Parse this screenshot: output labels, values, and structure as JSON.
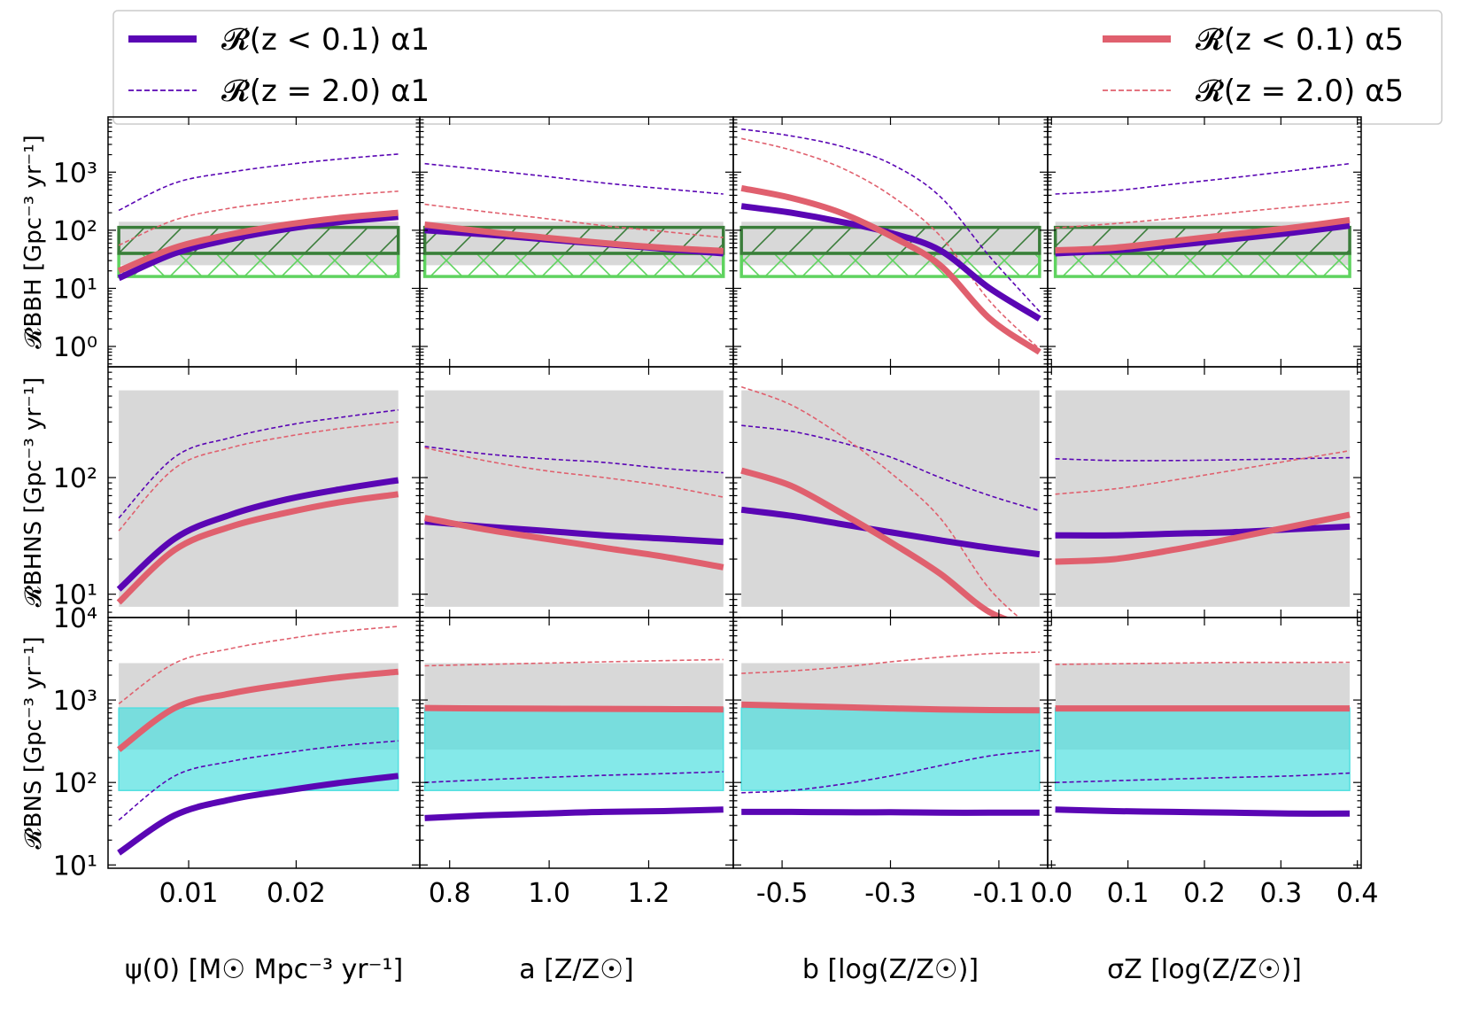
{
  "colors": {
    "alpha1": "#5a06b4",
    "alpha5": "#e0606e",
    "band_gray": "#d8d8d8",
    "bbh_dark_green": "#3a7d3a",
    "bbh_light_green": "#5fd35f",
    "bns_cyan": "#50dfe0"
  },
  "legend": {
    "entries": [
      {
        "label": "𝓡(z < 0.1) α1",
        "style": "solid-thick",
        "color": "#5a06b4"
      },
      {
        "label": "𝓡(z = 2.0) α1",
        "style": "dashed",
        "color": "#5a06b4"
      },
      {
        "label": "𝓡(z < 0.1) α5",
        "style": "solid-thick",
        "color": "#e0606e"
      },
      {
        "label": "𝓡(z = 2.0) α5",
        "style": "dashed",
        "color": "#e0606e"
      }
    ]
  },
  "chart_data": {
    "type": "line",
    "yscale": "log",
    "columns": [
      {
        "key": "psi",
        "xlabel": "ψ(0) [M☉ Mpc⁻³ yr⁻¹]",
        "xlim": [
          0.0025,
          0.0315
        ],
        "ticks": [
          0.01,
          0.02
        ],
        "tick_labels": [
          "0.01",
          "0.02"
        ],
        "xrange": [
          0.0035,
          0.0295
        ]
      },
      {
        "key": "a",
        "xlabel": "a [Z/Z☉]",
        "xlim": [
          0.74,
          1.37
        ],
        "ticks": [
          0.8,
          1.0,
          1.2
        ],
        "tick_labels": [
          "0.8",
          "1.0",
          "1.2"
        ],
        "xrange": [
          0.75,
          1.35
        ]
      },
      {
        "key": "b",
        "xlabel": "b [log(Z/Z☉)]",
        "xlim": [
          -0.59,
          -0.01
        ],
        "ticks": [
          -0.5,
          -0.3,
          -0.1
        ],
        "tick_labels": [
          "-0.5",
          "-0.3",
          "-0.1"
        ],
        "xrange": [
          -0.575,
          -0.025
        ]
      },
      {
        "key": "sigma",
        "xlabel": "σZ [log(Z/Z☉)]",
        "xlim": [
          -0.005,
          0.405
        ],
        "ticks": [
          0.0,
          0.1,
          0.2,
          0.3,
          0.4
        ],
        "tick_labels": [
          "0.0",
          "0.1",
          "0.2",
          "0.3",
          "0.4"
        ],
        "xrange": [
          0.005,
          0.39
        ]
      }
    ],
    "rows": [
      {
        "key": "BBH",
        "ylabel": "𝓡BBH [Gpc⁻³ yr⁻¹]",
        "ylim_log": [
          -0.35,
          3.95
        ],
        "ytick_exps": [
          0,
          1,
          2,
          3
        ],
        "ytick_labels": [
          "10⁰",
          "10¹",
          "10²",
          "10³"
        ],
        "bands": [
          {
            "kind": "gray",
            "range": [
              25,
              140
            ]
          },
          {
            "kind": "hatch-light-green",
            "range": [
              16,
              40
            ]
          },
          {
            "kind": "hatch-dark-green",
            "range": [
              40,
              112
            ]
          }
        ],
        "series": {
          "psi": {
            "a1z0": [
              15,
              40,
              70,
              105,
              140,
              170
            ],
            "a1z2": [
              220,
              650,
              1000,
              1350,
              1700,
              2050
            ],
            "a5z0": [
              20,
              50,
              85,
              125,
              165,
              200
            ],
            "a5z2": [
              55,
              150,
              240,
              320,
              400,
              470
            ]
          },
          "a": {
            "a1z0": [
              100,
              85,
              70,
              58,
              48,
              40
            ],
            "a1z2": [
              1400,
              1100,
              850,
              650,
              520,
              420
            ],
            "a5z0": [
              125,
              95,
              75,
              60,
              50,
              44
            ],
            "a5z2": [
              280,
              210,
              160,
              120,
              95,
              75
            ]
          },
          "b": {
            "a1z0": [
              260,
              200,
              140,
              90,
              45,
              10,
              3
            ],
            "a1z2": [
              5500,
              4200,
              2800,
              1400,
              380,
              35,
              4
            ],
            "a5z0": [
              530,
              360,
              200,
              80,
              25,
              3,
              0.8
            ],
            "a5z2": [
              3800,
              2400,
              1200,
              400,
              80,
              6,
              0.9
            ]
          },
          "sigma": {
            "a1z0": [
              40,
              45,
              55,
              70,
              90,
              120
            ],
            "a1z2": [
              420,
              480,
              620,
              800,
              1050,
              1400
            ],
            "a5z0": [
              45,
              50,
              65,
              85,
              110,
              150
            ],
            "a5z2": [
              110,
              130,
              160,
              200,
              250,
              310
            ]
          }
        }
      },
      {
        "key": "BHNS",
        "ylabel": "𝓡BHNS [Gpc⁻³ yr⁻¹]",
        "ylim_log": [
          0.8,
          2.95
        ],
        "ytick_exps": [
          1,
          2
        ],
        "ytick_labels": [
          "10¹",
          "10²"
        ],
        "bands": [
          {
            "kind": "gray",
            "range": [
              7.8,
              560
            ]
          }
        ],
        "series": {
          "psi": {
            "a1z0": [
              11,
              30,
              48,
              65,
              80,
              95
            ],
            "a1z2": [
              45,
              150,
              220,
              280,
              330,
              380
            ],
            "a5z0": [
              8.5,
              24,
              38,
              50,
              62,
              72
            ],
            "a5z2": [
              35,
              120,
              180,
              225,
              265,
              300
            ]
          },
          "a": {
            "a1z0": [
              42,
              38,
              35,
              32,
              30,
              28
            ],
            "a1z2": [
              185,
              160,
              145,
              135,
              120,
              110
            ],
            "a5z0": [
              45,
              36,
              30,
              25,
              21,
              17
            ],
            "a5z2": [
              180,
              140,
              115,
              100,
              85,
              68
            ]
          },
          "b": {
            "a1z0": [
              53,
              47,
              40,
              34,
              29,
              25,
              22
            ],
            "a1z2": [
              280,
              250,
              200,
              150,
              100,
              70,
              52
            ],
            "a5z0": [
              115,
              85,
              50,
              28,
              15,
              7,
              5
            ],
            "a5z2": [
              600,
              420,
              230,
              110,
              45,
              11,
              4.5
            ]
          },
          "sigma": {
            "a1z0": [
              32,
              32,
              33,
              34,
              36,
              38
            ],
            "a1z2": [
              145,
              140,
              140,
              142,
              145,
              148
            ],
            "a5z0": [
              19,
              20,
              24,
              30,
              38,
              48
            ],
            "a5z2": [
              72,
              80,
              95,
              115,
              140,
              170
            ]
          }
        }
      },
      {
        "key": "BNS",
        "ylabel": "𝓡BNS [Gpc⁻³ yr⁻¹]",
        "ylim_log": [
          0.96,
          4.0
        ],
        "ytick_exps": [
          1,
          2,
          3,
          4
        ],
        "ytick_labels": [
          "10¹",
          "10²",
          "10³",
          "10⁴"
        ],
        "bands": [
          {
            "kind": "gray",
            "range": [
              250,
              2800
            ]
          },
          {
            "kind": "cyan",
            "range": [
              80,
              800
            ]
          }
        ],
        "series": {
          "psi": {
            "a1z0": [
              14,
              40,
              62,
              80,
              100,
              120
            ],
            "a1z2": [
              35,
              120,
              180,
              230,
              280,
              320
            ],
            "a5z0": [
              250,
              800,
              1200,
              1550,
              1900,
              2200
            ],
            "a5z2": [
              900,
              2800,
              4200,
              5500,
              6800,
              7800
            ]
          },
          "a": {
            "a1z0": [
              37,
              40,
              42,
              44,
              45,
              47
            ],
            "a1z2": [
              100,
              108,
              115,
              122,
              128,
              135
            ],
            "a5z0": [
              800,
              790,
              785,
              780,
              775,
              770
            ],
            "a5z2": [
              2600,
              2700,
              2800,
              2900,
              3000,
              3100
            ]
          },
          "b": {
            "a1z0": [
              44,
              44,
              43.5,
              43.5,
              43,
              43,
              43
            ],
            "a1z2": [
              75,
              80,
              95,
              120,
              160,
              210,
              245
            ],
            "a5z0": [
              880,
              850,
              820,
              790,
              770,
              755,
              750
            ],
            "a5z2": [
              2100,
              2250,
              2500,
              2900,
              3300,
              3650,
              3800
            ]
          },
          "sigma": {
            "a1z0": [
              47,
              45,
              44,
              43,
              42,
              42
            ],
            "a1z2": [
              100,
              105,
              110,
              115,
              120,
              130
            ],
            "a5z0": [
              790,
              790,
              790,
              790,
              790,
              790
            ],
            "a5z2": [
              2700,
              2750,
              2800,
              2850,
              2850,
              2870
            ]
          }
        }
      }
    ]
  }
}
